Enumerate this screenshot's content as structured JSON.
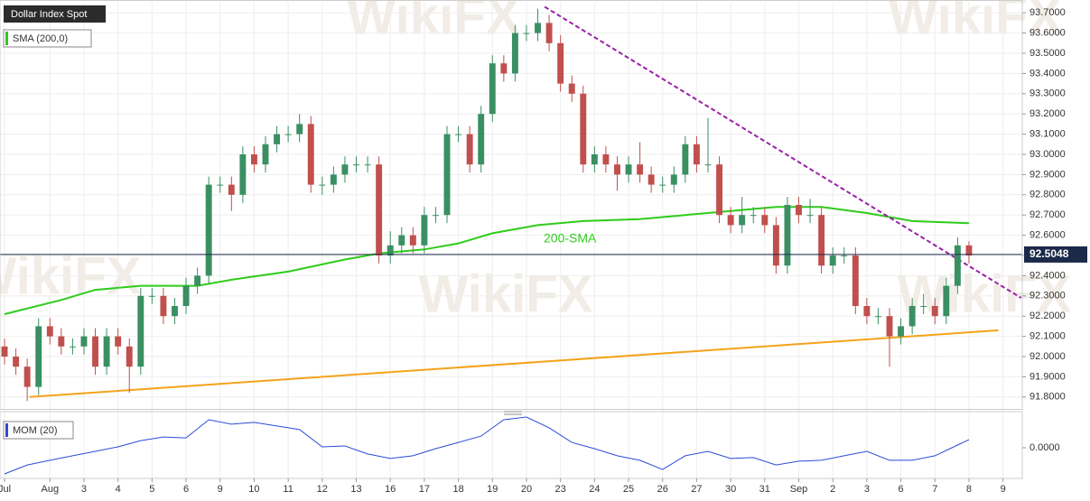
{
  "chart_data": {
    "type": "candlestick",
    "title": "Dollar Index Spot",
    "watermark": "WikiFX",
    "open": [
      92.05,
      92.0,
      91.95,
      91.85,
      92.15,
      92.1,
      92.05,
      92.05,
      92.1,
      91.95,
      92.1,
      92.05,
      91.95,
      92.3,
      92.3,
      92.2,
      92.25,
      92.35,
      92.4,
      92.85,
      92.85,
      92.8,
      93.0,
      92.95,
      93.05,
      93.1,
      93.1,
      93.15,
      92.85,
      92.85,
      92.9,
      92.95,
      92.95,
      92.95,
      92.5,
      92.55,
      92.6,
      92.55,
      92.7,
      92.7,
      93.1,
      93.1,
      92.95,
      93.2,
      93.45,
      93.4,
      93.6,
      93.6,
      93.65,
      93.55,
      93.35,
      93.3,
      92.95,
      93.0,
      92.95,
      92.9,
      92.95,
      92.9,
      92.85,
      92.85,
      92.9,
      93.05,
      92.95,
      92.95,
      92.7,
      92.65,
      92.7,
      92.7,
      92.65,
      92.45,
      92.75,
      92.7,
      92.7,
      92.45,
      92.5,
      92.5,
      92.25,
      92.2,
      92.2,
      92.1,
      92.15,
      92.25,
      92.25,
      92.2,
      92.35,
      92.55
    ],
    "high": [
      92.09,
      92.04,
      91.99,
      92.19,
      92.19,
      92.14,
      92.09,
      92.14,
      92.14,
      92.14,
      92.14,
      92.09,
      92.34,
      92.34,
      92.34,
      92.29,
      92.39,
      92.44,
      92.89,
      92.89,
      92.89,
      93.04,
      93.04,
      93.09,
      93.14,
      93.14,
      93.2,
      93.19,
      92.89,
      92.94,
      92.99,
      92.99,
      92.99,
      92.99,
      92.62,
      92.64,
      92.64,
      92.74,
      92.74,
      93.14,
      93.14,
      93.14,
      93.24,
      93.49,
      93.49,
      93.64,
      93.64,
      93.72,
      93.69,
      93.59,
      93.39,
      93.34,
      93.04,
      93.04,
      92.99,
      92.99,
      93.06,
      92.94,
      92.89,
      92.94,
      93.09,
      93.09,
      93.18,
      92.99,
      92.74,
      92.79,
      92.74,
      92.74,
      92.69,
      92.79,
      92.79,
      92.78,
      92.74,
      92.54,
      92.54,
      92.54,
      92.29,
      92.24,
      92.24,
      92.19,
      92.29,
      92.31,
      92.29,
      92.39,
      92.59,
      92.57
    ],
    "low": [
      91.96,
      91.91,
      91.78,
      91.81,
      92.06,
      92.01,
      92.01,
      92.01,
      91.91,
      91.91,
      92.01,
      91.82,
      91.91,
      92.26,
      92.16,
      92.16,
      92.21,
      92.31,
      92.36,
      92.81,
      92.72,
      92.76,
      92.91,
      92.91,
      93.01,
      93.06,
      93.06,
      92.81,
      92.8,
      92.81,
      92.86,
      92.91,
      92.91,
      92.46,
      92.46,
      92.51,
      92.51,
      92.51,
      92.66,
      92.66,
      93.06,
      92.91,
      92.91,
      93.16,
      93.36,
      93.36,
      93.56,
      93.56,
      93.51,
      93.31,
      93.26,
      92.91,
      92.91,
      92.91,
      92.82,
      92.86,
      92.86,
      92.81,
      92.81,
      92.81,
      92.86,
      92.91,
      92.91,
      92.66,
      92.61,
      92.61,
      92.66,
      92.61,
      92.41,
      92.41,
      92.66,
      92.66,
      92.41,
      92.41,
      92.46,
      92.21,
      92.16,
      92.16,
      91.95,
      92.06,
      92.11,
      92.21,
      92.16,
      92.16,
      92.31,
      92.46
    ],
    "close": [
      92.0,
      91.95,
      91.85,
      92.15,
      92.1,
      92.05,
      92.05,
      92.1,
      91.95,
      92.1,
      92.05,
      91.95,
      92.3,
      92.3,
      92.2,
      92.25,
      92.35,
      92.4,
      92.85,
      92.85,
      92.8,
      93.0,
      92.95,
      93.05,
      93.1,
      93.1,
      93.15,
      92.85,
      92.85,
      92.9,
      92.95,
      92.95,
      92.95,
      92.5,
      92.55,
      92.6,
      92.55,
      92.7,
      92.7,
      93.1,
      93.1,
      92.95,
      93.2,
      93.45,
      93.4,
      93.6,
      93.6,
      93.65,
      93.55,
      93.35,
      93.3,
      92.95,
      93.0,
      92.95,
      92.9,
      92.95,
      92.9,
      92.85,
      92.85,
      92.9,
      93.05,
      92.95,
      92.95,
      92.7,
      92.65,
      92.7,
      92.7,
      92.65,
      92.45,
      92.75,
      92.7,
      92.7,
      92.45,
      92.5,
      92.5,
      92.25,
      92.2,
      92.2,
      92.1,
      92.15,
      92.25,
      92.25,
      92.2,
      92.35,
      92.55,
      92.5
    ],
    "up_color": "#3a8f63",
    "down_color": "#c0504d",
    "sma": {
      "name": "SMA (200,0)",
      "annotation": "200-SMA",
      "color": "#2ecc1a",
      "x": [
        0,
        5,
        8,
        12,
        17,
        20,
        25,
        30,
        33,
        37,
        40,
        43,
        47,
        51,
        56,
        60,
        64,
        68,
        72,
        76,
        80,
        85
      ],
      "values": [
        92.21,
        92.28,
        92.33,
        92.35,
        92.35,
        92.38,
        92.42,
        92.48,
        92.51,
        92.53,
        92.56,
        92.61,
        92.65,
        92.67,
        92.68,
        92.7,
        92.72,
        92.74,
        92.74,
        92.71,
        92.67,
        92.66
      ]
    },
    "support": {
      "color": "#f5a21b",
      "x": [
        2.2,
        87.6
      ],
      "values": [
        91.8,
        92.13
      ]
    },
    "resistance": {
      "color": "#9b1fa8",
      "x": [
        47.6,
        89.6
      ],
      "values": [
        93.73,
        92.29
      ]
    },
    "last_price": 92.5048,
    "ylim": [
      91.75,
      93.75
    ],
    "yticks": [
      {
        "value": 91.8,
        "label": "91.8000"
      },
      {
        "value": 91.9,
        "label": "91.9000"
      },
      {
        "value": 92.0,
        "label": "92.0000"
      },
      {
        "value": 92.1,
        "label": "92.1000"
      },
      {
        "value": 92.2,
        "label": "92.2000"
      },
      {
        "value": 92.3,
        "label": "92.3000"
      },
      {
        "value": 92.4,
        "label": "92.4000"
      },
      {
        "value": 92.5,
        "label": "92.5000"
      },
      {
        "value": 92.6,
        "label": "92.6000"
      },
      {
        "value": 92.7,
        "label": "92.7000"
      },
      {
        "value": 92.8,
        "label": "92.8000"
      },
      {
        "value": 92.9,
        "label": "92.9000"
      },
      {
        "value": 93.0,
        "label": "93.0000"
      },
      {
        "value": 93.1,
        "label": "93.1000"
      },
      {
        "value": 93.2,
        "label": "93.2000"
      },
      {
        "value": 93.3,
        "label": "93.3000"
      },
      {
        "value": 93.4,
        "label": "93.4000"
      },
      {
        "value": 93.5,
        "label": "93.5000"
      },
      {
        "value": 93.6,
        "label": "93.6000"
      },
      {
        "value": 93.7,
        "label": "93.7000"
      }
    ],
    "xlim": [
      -0.4,
      89.7
    ],
    "xticks": [
      {
        "value": 0,
        "label": "Jul"
      },
      {
        "value": 4,
        "label": "Aug"
      },
      {
        "value": 7,
        "label": "3"
      },
      {
        "value": 10,
        "label": "4"
      },
      {
        "value": 13,
        "label": "5"
      },
      {
        "value": 16,
        "label": "6"
      },
      {
        "value": 19,
        "label": "9"
      },
      {
        "value": 22,
        "label": "10"
      },
      {
        "value": 25,
        "label": "11"
      },
      {
        "value": 28,
        "label": "12"
      },
      {
        "value": 31,
        "label": "13"
      },
      {
        "value": 34,
        "label": "16"
      },
      {
        "value": 37,
        "label": "17"
      },
      {
        "value": 40,
        "label": "18"
      },
      {
        "value": 43,
        "label": "19"
      },
      {
        "value": 46,
        "label": "20"
      },
      {
        "value": 49,
        "label": "23"
      },
      {
        "value": 52,
        "label": "24"
      },
      {
        "value": 55,
        "label": "25"
      },
      {
        "value": 58,
        "label": "26"
      },
      {
        "value": 61,
        "label": "27"
      },
      {
        "value": 64,
        "label": "30"
      },
      {
        "value": 67,
        "label": "31"
      },
      {
        "value": 70,
        "label": "Sep"
      },
      {
        "value": 73,
        "label": "2"
      },
      {
        "value": 76,
        "label": "3"
      },
      {
        "value": 79,
        "label": "6"
      },
      {
        "value": 82,
        "label": "7"
      },
      {
        "value": 85,
        "label": "8"
      },
      {
        "value": 88,
        "label": "9"
      }
    ],
    "grid": true,
    "mom": {
      "name": "MOM (20)",
      "color": "#2a4bd7",
      "x": [
        0,
        2,
        4,
        6,
        8,
        10,
        12,
        14,
        16,
        18,
        20,
        22,
        24,
        26,
        28,
        30,
        32,
        34,
        36,
        38,
        40,
        42,
        44,
        46,
        48,
        50,
        52,
        54,
        56,
        58,
        60,
        62,
        64,
        66,
        68,
        70,
        72,
        74,
        76,
        78,
        80,
        82,
        84,
        85
      ],
      "values": [
        -0.88,
        -0.58,
        -0.42,
        -0.27,
        -0.12,
        0.03,
        0.24,
        0.36,
        0.33,
        0.94,
        0.79,
        0.85,
        0.73,
        0.61,
        0.03,
        0.06,
        -0.21,
        -0.36,
        -0.27,
        -0.03,
        0.18,
        0.39,
        0.94,
        1.03,
        0.67,
        0.18,
        -0.03,
        -0.27,
        -0.42,
        -0.73,
        -0.27,
        -0.12,
        -0.36,
        -0.33,
        -0.58,
        -0.45,
        -0.42,
        -0.27,
        -0.12,
        -0.42,
        -0.42,
        -0.27,
        0.09,
        0.27
      ],
      "ylim": [
        -1.03,
        1.03
      ],
      "yticks": [
        {
          "value": 0,
          "label": "0.0000"
        }
      ]
    }
  }
}
